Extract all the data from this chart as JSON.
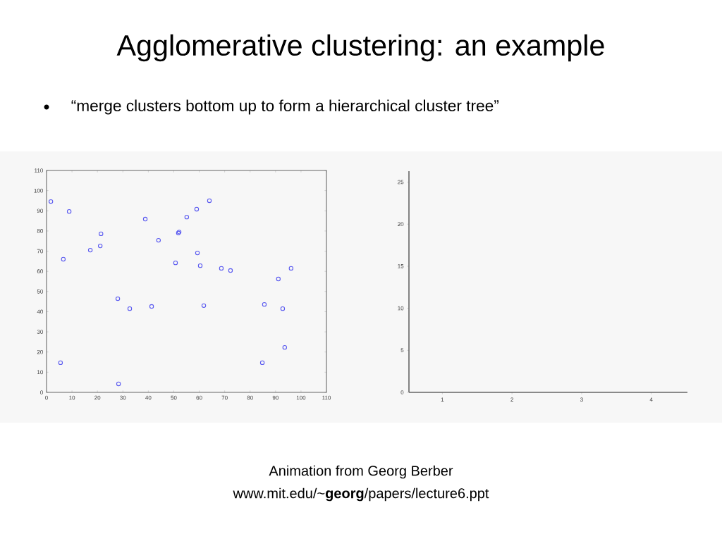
{
  "chart_data": [
    {
      "type": "scatter",
      "title": "Agglomerative clustering: an example",
      "subtitle": "“merge clusters bottom up to form a hierarchical cluster tree”",
      "annotations": [
        "Animation from Georg Berber",
        "www.mit.edu/~**georg**/papers/lecture6.ppt"
      ],
      "x": [
        1.7,
        8.9,
        6.6,
        5.5,
        17.2,
        21.1,
        21.4,
        28,
        28.3,
        32.7,
        38.8,
        41.3,
        44,
        50.7,
        51.8,
        52.1,
        55.1,
        59,
        59.3,
        60.4,
        64,
        61.8,
        68.7,
        72.3,
        84.8,
        85.6,
        91.1,
        92.8,
        93.6,
        96.1
      ],
      "values": [
        94.6,
        89.7,
        66,
        14.7,
        70.5,
        72.6,
        78.6,
        46.4,
        4.2,
        41.5,
        85.9,
        42.6,
        75.4,
        64.2,
        79,
        79.5,
        86.9,
        90.8,
        69.1,
        62.8,
        95,
        43,
        61.5,
        60.4,
        14.7,
        43.6,
        56.2,
        41.5,
        22.3,
        61.5
      ],
      "color": "#5a5af0",
      "marker": "circle",
      "xlim": [
        0,
        110
      ],
      "ylim": [
        0,
        110
      ],
      "xticks": [
        0,
        10,
        20,
        30,
        40,
        50,
        60,
        70,
        80,
        90,
        100,
        110
      ],
      "yticks": [
        0,
        10,
        20,
        30,
        40,
        50,
        60,
        70,
        80,
        90,
        100,
        110
      ]
    },
    {
      "type": "scatter",
      "xlim": [
        0.52,
        4.52
      ],
      "ylim": [
        0,
        26.3
      ],
      "xticks": [
        1,
        2,
        3,
        4
      ],
      "yticks": [
        0,
        5,
        10,
        15,
        20,
        25
      ]
    }
  ]
}
